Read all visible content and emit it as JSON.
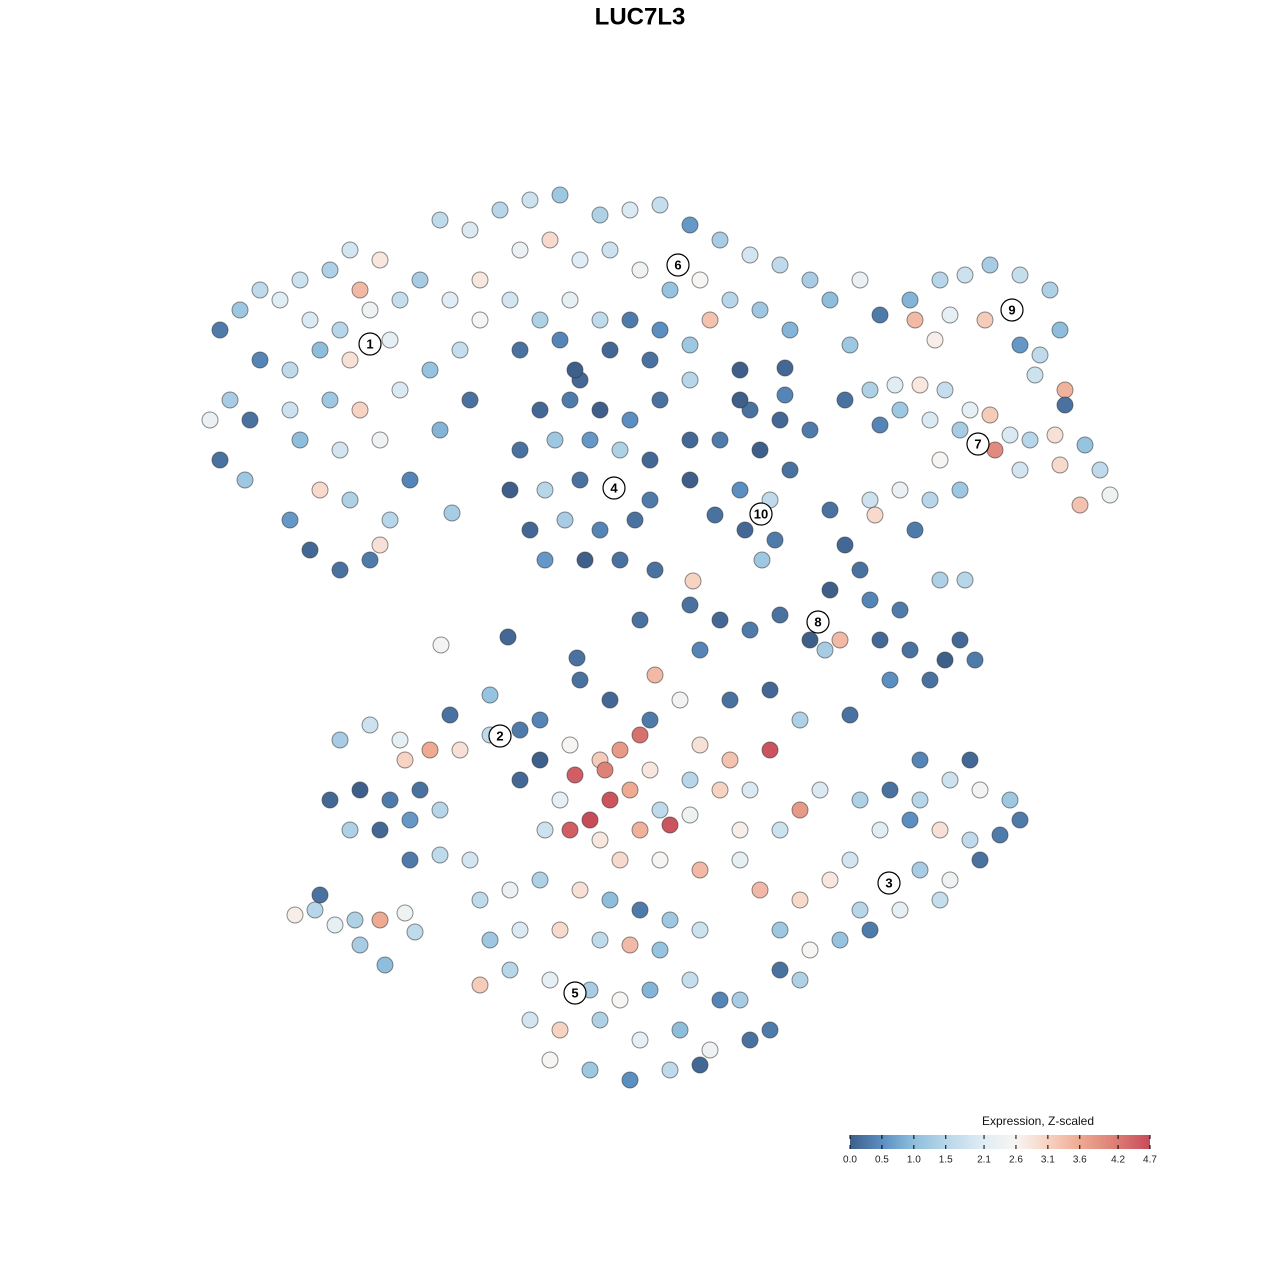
{
  "chart_data": {
    "type": "scatter",
    "title": "LUC7L3",
    "xlim": [
      0,
      1280
    ],
    "ylim": [
      1280,
      0
    ],
    "x": [
      220,
      240,
      260,
      280,
      300,
      330,
      350,
      380,
      360,
      310,
      340,
      370,
      400,
      420,
      390,
      350,
      320,
      290,
      260,
      230,
      210,
      250,
      290,
      330,
      360,
      400,
      430,
      460,
      480,
      300,
      340,
      380,
      320,
      350,
      290,
      310,
      340,
      370,
      390,
      410,
      440,
      470,
      245,
      220,
      380,
      440,
      470,
      500,
      530,
      560,
      600,
      630,
      660,
      690,
      720,
      750,
      780,
      810,
      830,
      520,
      550,
      580,
      610,
      640,
      670,
      700,
      730,
      760,
      790,
      480,
      510,
      540,
      570,
      600,
      630,
      660,
      690,
      710,
      450,
      520,
      560,
      610,
      650,
      690,
      850,
      860,
      740,
      580,
      880,
      910,
      940,
      965,
      990,
      1020,
      1050,
      915,
      950,
      985,
      1010,
      1060,
      1040,
      1020,
      935,
      1065,
      1035,
      1065,
      870,
      895,
      920,
      945,
      970,
      990,
      1010,
      1030,
      1055,
      1085,
      1100,
      1110,
      995,
      960,
      930,
      900,
      880,
      940,
      1020,
      1060,
      1080,
      870,
      900,
      930,
      960,
      915,
      875,
      845,
      540,
      570,
      600,
      630,
      520,
      555,
      590,
      620,
      650,
      510,
      545,
      580,
      615,
      650,
      530,
      565,
      600,
      635,
      545,
      585,
      620,
      660,
      690,
      720,
      690,
      655,
      750,
      780,
      810,
      760,
      790,
      740,
      770,
      745,
      775,
      762,
      715,
      740,
      785,
      830,
      845,
      860,
      830,
      870,
      900,
      940,
      965,
      880,
      910,
      945,
      975,
      890,
      930,
      960,
      780,
      810,
      750,
      720,
      700,
      840,
      825,
      690,
      330,
      360,
      390,
      420,
      350,
      380,
      410,
      440,
      340,
      370,
      400,
      430,
      460,
      490,
      520,
      450,
      490,
      540,
      405,
      410,
      440,
      470,
      520,
      540,
      570,
      600,
      620,
      640,
      575,
      610,
      590,
      570,
      605,
      630,
      650,
      670,
      700,
      730,
      770,
      750,
      720,
      690,
      660,
      640,
      600,
      560,
      545,
      620,
      660,
      700,
      740,
      780,
      800,
      820,
      740,
      690,
      650,
      610,
      680,
      655,
      730,
      770,
      800,
      850,
      580,
      860,
      890,
      920,
      950,
      980,
      1010,
      1020,
      880,
      910,
      940,
      970,
      1000,
      850,
      920,
      950,
      980,
      830,
      860,
      900,
      940,
      800,
      780,
      810,
      840,
      870,
      780,
      800,
      760,
      970,
      920,
      480,
      510,
      540,
      580,
      610,
      640,
      670,
      700,
      490,
      520,
      560,
      600,
      630,
      660,
      480,
      510,
      550,
      590,
      620,
      650,
      690,
      720,
      530,
      560,
      600,
      640,
      680,
      710,
      750,
      550,
      590,
      630,
      670,
      700,
      770,
      740,
      295,
      315,
      335,
      355,
      380,
      405,
      360,
      385,
      415,
      320,
      441,
      508,
      577,
      452,
      693,
      640,
      785,
      575
    ],
    "y": [
      330,
      310,
      290,
      300,
      280,
      270,
      250,
      260,
      290,
      320,
      330,
      310,
      300,
      280,
      340,
      360,
      350,
      370,
      360,
      400,
      420,
      420,
      410,
      400,
      410,
      390,
      370,
      350,
      320,
      440,
      450,
      440,
      490,
      500,
      520,
      550,
      570,
      560,
      520,
      480,
      430,
      400,
      480,
      460,
      545,
      220,
      230,
      210,
      200,
      195,
      215,
      210,
      205,
      225,
      240,
      255,
      265,
      280,
      300,
      250,
      240,
      260,
      250,
      270,
      290,
      280,
      300,
      310,
      330,
      280,
      300,
      320,
      300,
      320,
      320,
      330,
      345,
      320,
      300,
      350,
      340,
      350,
      360,
      380,
      345,
      280,
      370,
      380,
      315,
      300,
      280,
      275,
      265,
      275,
      290,
      320,
      315,
      320,
      310,
      330,
      355,
      345,
      340,
      390,
      375,
      405,
      390,
      385,
      385,
      390,
      410,
      415,
      435,
      440,
      435,
      445,
      470,
      495,
      450,
      430,
      420,
      410,
      425,
      460,
      470,
      465,
      505,
      500,
      490,
      500,
      490,
      530,
      515,
      400,
      410,
      400,
      410,
      420,
      450,
      440,
      440,
      450,
      460,
      490,
      490,
      480,
      490,
      500,
      530,
      520,
      530,
      520,
      560,
      560,
      560,
      400,
      440,
      440,
      480,
      570,
      410,
      420,
      430,
      450,
      470,
      490,
      500,
      530,
      540,
      560,
      515,
      400,
      395,
      510,
      545,
      570,
      590,
      600,
      610,
      580,
      580,
      640,
      650,
      660,
      660,
      680,
      680,
      640,
      615,
      640,
      630,
      620,
      650,
      640,
      650,
      605,
      800,
      790,
      800,
      790,
      830,
      830,
      820,
      810,
      740,
      725,
      740,
      750,
      750,
      735,
      730,
      715,
      695,
      720,
      760,
      860,
      855,
      860,
      780,
      760,
      745,
      760,
      750,
      735,
      775,
      800,
      820,
      830,
      770,
      790,
      770,
      825,
      745,
      760,
      750,
      790,
      790,
      815,
      810,
      830,
      840,
      800,
      830,
      860,
      860,
      870,
      860,
      830,
      810,
      790,
      830,
      780,
      720,
      700,
      700,
      675,
      700,
      690,
      720,
      715,
      680,
      800,
      790,
      800,
      780,
      790,
      800,
      820,
      830,
      820,
      830,
      840,
      835,
      860,
      870,
      880,
      860,
      880,
      910,
      910,
      900,
      900,
      930,
      950,
      940,
      930,
      970,
      980,
      890,
      760,
      760,
      900,
      890,
      880,
      890,
      900,
      910,
      920,
      930,
      940,
      930,
      930,
      940,
      945,
      950,
      985,
      970,
      980,
      990,
      1000,
      990,
      980,
      1000,
      1020,
      1030,
      1020,
      1040,
      1030,
      1050,
      1040,
      1060,
      1070,
      1080,
      1070,
      1065,
      1030,
      1000,
      915,
      910,
      925,
      920,
      920,
      913,
      945,
      965,
      932,
      895,
      645,
      637,
      658,
      513,
      581,
      620,
      368,
      370
    ],
    "values": [
      0.3,
      1.2,
      1.6,
      2.1,
      1.8,
      1.4,
      1.9,
      2.8,
      3.4,
      2.0,
      1.5,
      2.4,
      1.7,
      1.3,
      2.2,
      2.9,
      1.0,
      1.6,
      0.4,
      1.3,
      2.3,
      0.2,
      1.8,
      1.2,
      3.1,
      2.0,
      1.1,
      1.7,
      2.6,
      1.0,
      1.9,
      2.4,
      3.0,
      1.4,
      0.6,
      0.1,
      0.2,
      0.3,
      1.5,
      0.4,
      0.9,
      0.2,
      1.2,
      0.2,
      2.9,
      1.6,
      2.0,
      1.5,
      1.8,
      1.2,
      1.4,
      2.0,
      1.7,
      0.6,
      1.3,
      1.9,
      1.6,
      1.3,
      1.0,
      2.3,
      3.0,
      2.1,
      1.8,
      2.4,
      1.1,
      2.6,
      1.5,
      1.2,
      0.9,
      2.8,
      1.9,
      1.4,
      2.2,
      1.6,
      0.3,
      0.5,
      1.2,
      3.3,
      2.1,
      0.2,
      0.4,
      0.1,
      0.2,
      1.5,
      1.2,
      2.3,
      0.0,
      0.1,
      0.3,
      0.9,
      1.5,
      1.8,
      1.3,
      1.7,
      1.4,
      3.4,
      2.2,
      3.2,
      2.6,
      1.0,
      1.6,
      0.6,
      2.7,
      3.5,
      1.8,
      0.2,
      1.4,
      2.1,
      2.8,
      1.7,
      2.2,
      3.2,
      2.0,
      1.5,
      2.9,
      1.1,
      1.6,
      2.4,
      4.0,
      1.3,
      2.0,
      1.2,
      0.4,
      2.6,
      1.9,
      3.0,
      3.3,
      1.8,
      2.3,
      1.5,
      1.2,
      0.3,
      3.0,
      0.2,
      0.1,
      0.3,
      0.0,
      0.5,
      0.2,
      1.2,
      0.6,
      1.4,
      0.1,
      0.0,
      1.5,
      0.2,
      2.1,
      0.3,
      0.1,
      1.3,
      0.4,
      0.2,
      0.6,
      0.0,
      0.2,
      0.2,
      0.1,
      0.3,
      0.0,
      0.2,
      0.2,
      0.1,
      0.3,
      0.0,
      0.2,
      0.5,
      1.6,
      0.1,
      0.3,
      1.2,
      0.2,
      0.0,
      0.4,
      0.2,
      0.1,
      0.2,
      0.0,
      0.4,
      0.3,
      1.4,
      1.5,
      0.1,
      0.2,
      0.0,
      0.3,
      0.5,
      0.2,
      0.1,
      0.2,
      0.0,
      0.3,
      0.1,
      0.4,
      3.4,
      1.3,
      0.2,
      0.1,
      0.0,
      0.3,
      0.2,
      1.4,
      0.1,
      0.6,
      1.5,
      1.3,
      1.8,
      2.2,
      3.6,
      2.9,
      1.6,
      0.3,
      0.2,
      1.1,
      0.4,
      3.1,
      0.3,
      1.6,
      1.9,
      0.1,
      0.0,
      2.6,
      3.2,
      3.8,
      4.3,
      4.5,
      4.6,
      4.7,
      4.5,
      4.1,
      3.6,
      2.8,
      4.6,
      2.9,
      3.3,
      4.6,
      2.0,
      3.1,
      2.4,
      1.6,
      3.5,
      2.8,
      2.2,
      1.8,
      3.0,
      2.6,
      3.4,
      2.2,
      1.8,
      3.8,
      2.0,
      2.7,
      1.5,
      0.3,
      0.1,
      2.5,
      3.4,
      0.2,
      0.1,
      1.4,
      0.2,
      0.2,
      1.4,
      0.2,
      1.5,
      1.8,
      2.5,
      1.2,
      0.3,
      2.1,
      0.5,
      2.9,
      1.6,
      0.3,
      1.9,
      1.3,
      2.4,
      0.2,
      2.8,
      1.5,
      2.2,
      1.7,
      3.0,
      1.2,
      2.6,
      1.1,
      0.3,
      0.2,
      1.4,
      3.4,
      0.1,
      0.4,
      1.6,
      2.3,
      1.4,
      2.9,
      1.0,
      0.3,
      1.2,
      1.8,
      1.2,
      2.0,
      3.0,
      1.6,
      3.4,
      1.1,
      3.2,
      1.5,
      2.2,
      1.3,
      2.6,
      0.9,
      1.7,
      0.4,
      1.9,
      3.1,
      1.4,
      2.2,
      1.0,
      2.4,
      0.2,
      2.6,
      1.2,
      0.5,
      1.6,
      0.1,
      0.3,
      1.3,
      2.7,
      1.5,
      2.2,
      1.4,
      3.6,
      2.4,
      1.3,
      1.0,
      1.6,
      0.2,
      2.5,
      0.1,
      0.2,
      1.3,
      3.1,
      0.2,
      0.1,
      0.0
    ],
    "clusters": [
      {
        "label": "1",
        "x": 370,
        "y": 344
      },
      {
        "label": "2",
        "x": 500,
        "y": 736
      },
      {
        "label": "3",
        "x": 889,
        "y": 883
      },
      {
        "label": "4",
        "x": 614,
        "y": 488
      },
      {
        "label": "5",
        "x": 575,
        "y": 993
      },
      {
        "label": "6",
        "x": 678,
        "y": 265
      },
      {
        "label": "7",
        "x": 978,
        "y": 444
      },
      {
        "label": "8",
        "x": 818,
        "y": 622
      },
      {
        "label": "9",
        "x": 1012,
        "y": 310
      },
      {
        "label": "10",
        "x": 761,
        "y": 514
      }
    ],
    "colorbar": {
      "title": "Expression, Z-scaled",
      "clim": [
        0,
        4.7
      ],
      "ticks": [
        {
          "value": 0,
          "label": "0.0"
        },
        0.5,
        {
          "value": 1,
          "label": "1.0"
        },
        1.5,
        2.1,
        2.6,
        3.1,
        3.6,
        4.2,
        4.7
      ],
      "colors": [
        "#3e5f8a",
        "#5b8ec1",
        "#8ebedc",
        "#b7d6e9",
        "#e1edf4",
        "#f7f5f3",
        "#f7d3c2",
        "#eeaa93",
        "#db7a72",
        "#c84b5a"
      ]
    }
  }
}
